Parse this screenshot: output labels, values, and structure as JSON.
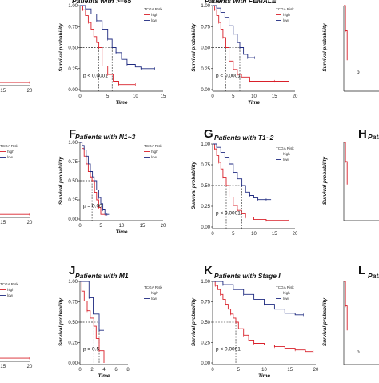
{
  "figure": {
    "colors": {
      "high": "#d9202a",
      "low": "#1f2a80"
    }
  },
  "chart_data": [
    {
      "id": "partial-top-left",
      "type": "line",
      "letter": "",
      "title": "",
      "xlabel": "",
      "ylabel": "",
      "legend_title": "",
      "legend_entries": [],
      "pvalue": "",
      "xticks": [
        "15",
        "20"
      ],
      "yticks": [],
      "xlim": [
        0,
        20
      ],
      "ylim": [
        0,
        1
      ],
      "series": [
        {
          "name": "high",
          "x": [
            0,
            20
          ],
          "y": [
            0.02,
            0.02
          ]
        }
      ]
    },
    {
      "id": "panel-B",
      "type": "line",
      "letter": "",
      "title": "Patients with >=65",
      "xlabel": "Time",
      "ylabel": "Survival probability",
      "legend_title": "TCGA Risk",
      "legend_entries": [
        "high",
        "low"
      ],
      "pvalue": "p < 0.0001",
      "xticks": [
        "0",
        "5",
        "10",
        "15"
      ],
      "yticks": [
        "0.00",
        "0.25",
        "0.50",
        "0.75",
        "1.00"
      ],
      "xlim": [
        0,
        15
      ],
      "ylim": [
        0,
        1
      ],
      "median_guides": [
        3.4,
        5.8
      ],
      "series": [
        {
          "name": "high",
          "x": [
            0,
            0.5,
            1,
            1.5,
            2,
            2.5,
            3,
            3.4,
            4,
            5,
            6,
            7,
            8,
            10
          ],
          "y": [
            1,
            0.95,
            0.88,
            0.8,
            0.72,
            0.63,
            0.56,
            0.5,
            0.28,
            0.18,
            0.1,
            0.06,
            0.06,
            0.06
          ]
        },
        {
          "name": "low",
          "x": [
            0,
            1,
            2,
            3,
            4,
            5,
            5.8,
            6.5,
            7.5,
            8.5,
            10,
            11,
            12,
            13.5
          ],
          "y": [
            1,
            0.96,
            0.9,
            0.82,
            0.72,
            0.6,
            0.5,
            0.44,
            0.36,
            0.3,
            0.27,
            0.25,
            0.25,
            0.25
          ]
        }
      ]
    },
    {
      "id": "panel-C",
      "type": "line",
      "letter": "",
      "title": "Patients with FEMALE",
      "xlabel": "Time",
      "ylabel": "Survival probability",
      "legend_title": "TCGA Risk",
      "legend_entries": [
        "high",
        "low"
      ],
      "pvalue": "p < 0.0001",
      "xticks": [
        "0",
        "5",
        "10",
        "15",
        "20"
      ],
      "yticks": [
        "0.00",
        "0.25",
        "0.50",
        "0.75",
        "1.00"
      ],
      "xlim": [
        0,
        20
      ],
      "ylim": [
        0,
        1
      ],
      "median_guides": [
        3.2,
        6.6
      ],
      "series": [
        {
          "name": "high",
          "x": [
            0,
            0.5,
            1,
            1.5,
            2,
            2.5,
            3.2,
            4,
            5,
            6,
            7,
            9,
            12,
            15,
            18.5
          ],
          "y": [
            1,
            0.95,
            0.88,
            0.8,
            0.72,
            0.62,
            0.5,
            0.34,
            0.24,
            0.18,
            0.15,
            0.1,
            0.1,
            0.1,
            0.1
          ]
        },
        {
          "name": "low",
          "x": [
            0,
            1,
            2,
            3,
            4,
            5,
            6,
            6.6,
            7.5,
            8.5,
            9.5,
            10.2
          ],
          "y": [
            1,
            0.97,
            0.92,
            0.86,
            0.76,
            0.66,
            0.56,
            0.5,
            0.42,
            0.38,
            0.38,
            0.38
          ]
        }
      ]
    },
    {
      "id": "partial-top-right",
      "type": "line",
      "letter": "",
      "title": "",
      "xlabel": "",
      "ylabel": "Survival probability",
      "legend_title": "",
      "legend_entries": [],
      "pvalue": "p",
      "xticks": [],
      "yticks": [],
      "xlim": [
        0,
        20
      ],
      "ylim": [
        0,
        1
      ],
      "series": [
        {
          "name": "high",
          "x": [
            0,
            0.4,
            0.8
          ],
          "y": [
            1,
            0.7,
            0.35
          ]
        }
      ]
    },
    {
      "id": "partial-mid-left",
      "type": "line",
      "letter": "",
      "title": "",
      "xlabel": "",
      "ylabel": "",
      "legend_title": "TCGA Risk",
      "legend_entries": [
        "high",
        "low"
      ],
      "pvalue": "",
      "xticks": [
        "15",
        "20"
      ],
      "yticks": [],
      "xlim": [
        0,
        20
      ],
      "ylim": [
        0,
        1
      ],
      "series": [
        {
          "name": "high",
          "x": [
            0,
            20
          ],
          "y": [
            0.02,
            0.02
          ]
        }
      ]
    },
    {
      "id": "panel-F",
      "type": "line",
      "letter": "F",
      "title": "Patients with N1~3",
      "xlabel": "Time",
      "ylabel": "Survival probability",
      "legend_title": "TCGA Risk",
      "legend_entries": [
        "high",
        "low"
      ],
      "pvalue": "p = 0.00",
      "xticks": [
        "0",
        "5",
        "10",
        "15",
        "20"
      ],
      "yticks": [
        "0.00",
        "0.25",
        "0.50",
        "0.75",
        "1.00"
      ],
      "xlim": [
        0,
        20
      ],
      "ylim": [
        0,
        1
      ],
      "median_guides": [
        2.9,
        3.4
      ],
      "series": [
        {
          "name": "high",
          "x": [
            0,
            0.5,
            1,
            1.5,
            2,
            2.5,
            2.9,
            3.5,
            4,
            4.5,
            5,
            6
          ],
          "y": [
            1,
            0.92,
            0.82,
            0.72,
            0.62,
            0.55,
            0.5,
            0.35,
            0.25,
            0.15,
            0.06,
            0.06
          ]
        },
        {
          "name": "low",
          "x": [
            0,
            0.5,
            1,
            1.5,
            2,
            2.5,
            3,
            3.4,
            4,
            4.5,
            5,
            5.5,
            6,
            6.5,
            7
          ],
          "y": [
            1,
            0.96,
            0.9,
            0.82,
            0.72,
            0.62,
            0.55,
            0.5,
            0.38,
            0.28,
            0.2,
            0.12,
            0.06,
            0.06,
            0.06
          ]
        }
      ]
    },
    {
      "id": "panel-G",
      "type": "line",
      "letter": "G",
      "title": "Patients with T1~2",
      "xlabel": "",
      "ylabel": "Survival probability",
      "legend_title": "TCGA Risk",
      "legend_entries": [
        "high",
        "low"
      ],
      "pvalue": "p < 0.0001",
      "xticks": [
        "0",
        "5",
        "10",
        "15",
        "20"
      ],
      "yticks": [
        "0.00",
        "0.25",
        "0.50",
        "0.75",
        "1.00"
      ],
      "xlim": [
        0,
        20
      ],
      "ylim": [
        0,
        1
      ],
      "median_guides": [
        3.3,
        7.1
      ],
      "series": [
        {
          "name": "high",
          "x": [
            0,
            0.5,
            1,
            1.5,
            2,
            2.5,
            3.3,
            4,
            5,
            6,
            7,
            8,
            10,
            13,
            16,
            18.5
          ],
          "y": [
            1,
            0.94,
            0.86,
            0.78,
            0.7,
            0.6,
            0.5,
            0.36,
            0.26,
            0.2,
            0.16,
            0.12,
            0.09,
            0.08,
            0.08,
            0.08
          ]
        },
        {
          "name": "low",
          "x": [
            0,
            1,
            2,
            3,
            4,
            5,
            6,
            7.1,
            8,
            9,
            10,
            11,
            12,
            13,
            14.2
          ],
          "y": [
            1,
            0.96,
            0.9,
            0.84,
            0.76,
            0.66,
            0.58,
            0.5,
            0.42,
            0.38,
            0.35,
            0.33,
            0.33,
            0.33,
            0.33
          ]
        }
      ]
    },
    {
      "id": "partial-mid-right",
      "type": "line",
      "letter": "H",
      "title": "Patien",
      "xlabel": "",
      "ylabel": "Survival probability",
      "legend_title": "",
      "legend_entries": [],
      "pvalue": "",
      "xticks": [],
      "yticks": [],
      "xlim": [
        0,
        20
      ],
      "ylim": [
        0,
        1
      ],
      "series": [
        {
          "name": "high",
          "x": [
            0,
            0.4,
            0.8
          ],
          "y": [
            1,
            0.75,
            0.45
          ]
        }
      ]
    },
    {
      "id": "partial-bottom-left",
      "type": "line",
      "letter": "",
      "title": "",
      "xlabel": "",
      "ylabel": "",
      "legend_title": "TCGA Risk",
      "legend_entries": [
        "high",
        "low"
      ],
      "pvalue": "",
      "xticks": [
        "15",
        "20"
      ],
      "yticks": [],
      "xlim": [
        0,
        20
      ],
      "ylim": [
        0,
        1
      ],
      "series": [
        {
          "name": "high",
          "x": [
            0,
            20
          ],
          "y": [
            0.02,
            0.02
          ]
        }
      ]
    },
    {
      "id": "panel-J",
      "type": "line",
      "letter": "J",
      "title": "Patients with M1",
      "xlabel": "Time",
      "ylabel": "Survival probability",
      "legend_title": "TCGA Risk",
      "legend_entries": [
        "high",
        "low"
      ],
      "pvalue": "p = 0.5",
      "xticks": [
        "0",
        "2",
        "4",
        "6",
        "8"
      ],
      "yticks": [
        "0.00",
        "0.25",
        "0.50",
        "0.75",
        "1.00"
      ],
      "xlim": [
        0,
        8
      ],
      "ylim": [
        0,
        1
      ],
      "median_guides": [
        2.3,
        3.2
      ],
      "series": [
        {
          "name": "high",
          "x": [
            0,
            0.3,
            0.7,
            1.2,
            1.7,
            2.3,
            2.7,
            3.2,
            4
          ],
          "y": [
            1,
            0.88,
            0.76,
            0.64,
            0.55,
            0.45,
            0.3,
            0.15,
            0
          ]
        },
        {
          "name": "low",
          "x": [
            0,
            1.5,
            2.2,
            3.2,
            4
          ],
          "y": [
            1,
            0.8,
            0.6,
            0.4,
            0.4
          ]
        }
      ]
    },
    {
      "id": "panel-K",
      "type": "line",
      "letter": "K",
      "title": "Patients with Stage I",
      "xlabel": "Time",
      "ylabel": "Survival probability",
      "legend_title": "TCGA Risk",
      "legend_entries": [
        "high",
        "low"
      ],
      "pvalue": "p < 0.0001",
      "xticks": [
        "0",
        "5",
        "10",
        "15",
        "20"
      ],
      "yticks": [
        "0.00",
        "0.25",
        "0.50",
        "0.75",
        "1.00"
      ],
      "xlim": [
        0,
        20
      ],
      "ylim": [
        0,
        1
      ],
      "median_guides": [
        4.5
      ],
      "series": [
        {
          "name": "high",
          "x": [
            0,
            0.5,
            1,
            1.5,
            2,
            2.5,
            3,
            3.5,
            4,
            4.5,
            5,
            6,
            7,
            8,
            10,
            12,
            14,
            16,
            18,
            19.5
          ],
          "y": [
            1,
            0.95,
            0.9,
            0.84,
            0.78,
            0.72,
            0.66,
            0.6,
            0.55,
            0.5,
            0.42,
            0.34,
            0.28,
            0.24,
            0.22,
            0.2,
            0.18,
            0.16,
            0.14,
            0.14
          ]
        },
        {
          "name": "low",
          "x": [
            0,
            2,
            4,
            6,
            8,
            10,
            12,
            14,
            16,
            17.6
          ],
          "y": [
            1,
            0.96,
            0.9,
            0.84,
            0.78,
            0.72,
            0.66,
            0.61,
            0.59,
            0.59
          ]
        }
      ]
    },
    {
      "id": "partial-bottom-right",
      "type": "line",
      "letter": "L",
      "title": "Pati",
      "xlabel": "",
      "ylabel": "Survival probability",
      "legend_title": "",
      "legend_entries": [],
      "pvalue": "p",
      "xticks": [],
      "yticks": [],
      "xlim": [
        0,
        20
      ],
      "ylim": [
        0,
        1
      ],
      "series": [
        {
          "name": "high",
          "x": [
            0,
            0.4,
            0.8
          ],
          "y": [
            1,
            0.7,
            0.4
          ]
        }
      ]
    }
  ]
}
